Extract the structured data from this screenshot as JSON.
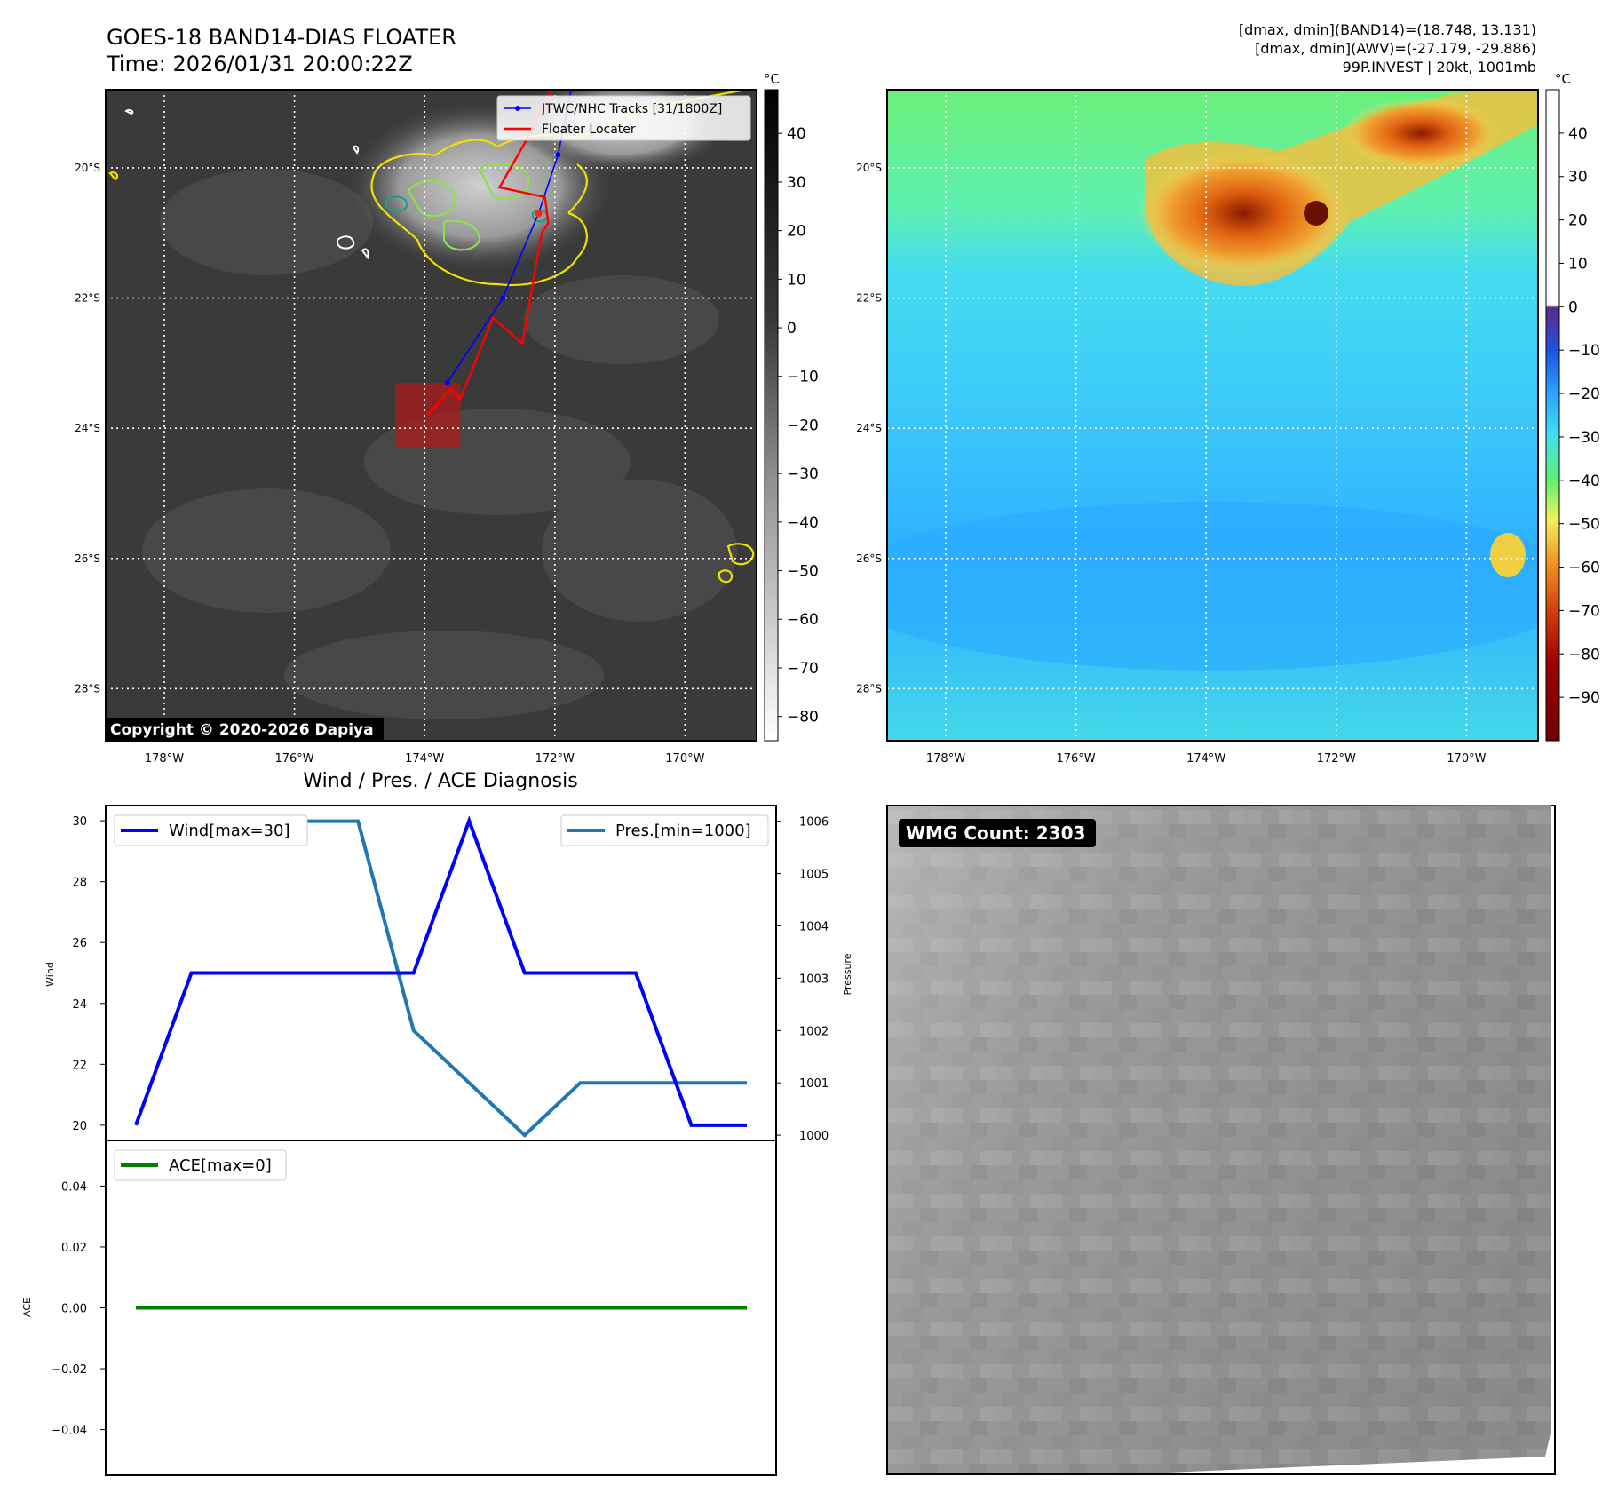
{
  "header": {
    "title": "GOES-18 BAND14-DIAS FLOATER",
    "time": "Time: 2026/01/31 20:00:22Z",
    "stats": [
      "[dmax, dmin](BAND14)=(18.748, 13.131)",
      "[dmax, dmin](AWV)=(-27.179, -29.886)",
      "99P.INVEST | 20kt, 1001mb"
    ]
  },
  "copyright": "Copyright © 2020-2026 Dapiya",
  "map": {
    "lon_ticks": [
      -178,
      -176,
      -174,
      -172,
      -170
    ],
    "lon_labels": [
      "178°W",
      "176°W",
      "174°W",
      "172°W",
      "170°W"
    ],
    "lat_ticks": [
      -20,
      -22,
      -24,
      -26,
      -28
    ],
    "lat_labels": [
      "20°S",
      "22°S",
      "24°S",
      "26°S",
      "28°S"
    ],
    "lon_range": [
      -178.9,
      -168.9
    ],
    "lat_range": [
      -18.8,
      -28.8
    ],
    "legend": [
      "JTWC/NHC Tracks [31/1800Z]",
      "Floater Locater"
    ],
    "track_color": "#0000ff",
    "locater_color": "#ff0000",
    "jtwc_track": [
      [
        -173.65,
        -23.3
      ],
      [
        -172.8,
        -22.0
      ],
      [
        -172.25,
        -20.7
      ],
      [
        -171.95,
        -19.8
      ],
      [
        -171.75,
        -18.8
      ]
    ],
    "floater_locater": [
      [
        -173.95,
        -23.8
      ],
      [
        -173.6,
        -23.4
      ],
      [
        -173.45,
        -23.55
      ],
      [
        -172.95,
        -22.3
      ],
      [
        -172.5,
        -22.7
      ],
      [
        -172.2,
        -21.0
      ],
      [
        -172.1,
        -20.85
      ],
      [
        -172.15,
        -20.45
      ],
      [
        -172.85,
        -20.3
      ],
      [
        -172.45,
        -19.6
      ],
      [
        -172.05,
        -18.8
      ]
    ],
    "floater_box": {
      "lon": [
        -174.45,
        -173.45
      ],
      "lat": [
        -23.3,
        -24.3
      ]
    },
    "dmax_marker": [
      -172.25,
      -20.7
    ]
  },
  "colorbar_ir": {
    "unit": "°C",
    "ticks": [
      40,
      30,
      20,
      10,
      0,
      -10,
      -20,
      -30,
      -40,
      -50,
      -60,
      -70,
      -80
    ],
    "range": [
      49,
      -85
    ]
  },
  "colorbar_wv": {
    "unit": "°C",
    "ticks": [
      40,
      30,
      20,
      10,
      0,
      -10,
      -20,
      -30,
      -40,
      -50,
      -60,
      -70,
      -80,
      -90
    ],
    "range": [
      50,
      -100
    ]
  },
  "chart_data": [
    {
      "type": "line",
      "title": "Wind / Pres. / ACE Diagnosis",
      "ylabel": "Wind",
      "ylim": [
        19.5,
        30.5
      ],
      "yticks": [
        20,
        22,
        24,
        26,
        28,
        30
      ],
      "x": [
        0,
        1,
        2,
        3,
        4,
        5,
        6,
        7,
        8,
        9,
        10,
        11
      ],
      "series": [
        {
          "name": "Wind[max=30]",
          "color": "#0000ff",
          "values": [
            20,
            25,
            25,
            25,
            25,
            25,
            30,
            25,
            25,
            25,
            20,
            20
          ]
        }
      ]
    },
    {
      "type": "line",
      "ylabel": "Pressure",
      "ylim": [
        999.9,
        1006.3
      ],
      "yticks": [
        1000,
        1001,
        1002,
        1003,
        1004,
        1005,
        1006
      ],
      "x": [
        0,
        1,
        2,
        3,
        4,
        5,
        6,
        7,
        8,
        9,
        10,
        11
      ],
      "series": [
        {
          "name": "Pres.[min=1000]",
          "color": "#1f77b4",
          "values": [
            1006,
            1006,
            1006,
            1006,
            1006,
            1002,
            1001,
            1000,
            1001,
            1001,
            1001,
            1001
          ]
        }
      ]
    },
    {
      "type": "line",
      "ylabel": "ACE",
      "ylim": [
        -0.055,
        0.055
      ],
      "yticks": [
        0.04,
        0.02,
        0.0,
        -0.02,
        -0.04
      ],
      "ytick_labels": [
        "0.04",
        "0.02",
        "0.00",
        "−0.02",
        "−0.04"
      ],
      "x": [
        0,
        11
      ],
      "series": [
        {
          "name": "ACE[max=0]",
          "color": "#008000",
          "values": [
            0,
            0
          ]
        }
      ]
    }
  ],
  "wmg": {
    "label": "WMG Count: 2303"
  }
}
